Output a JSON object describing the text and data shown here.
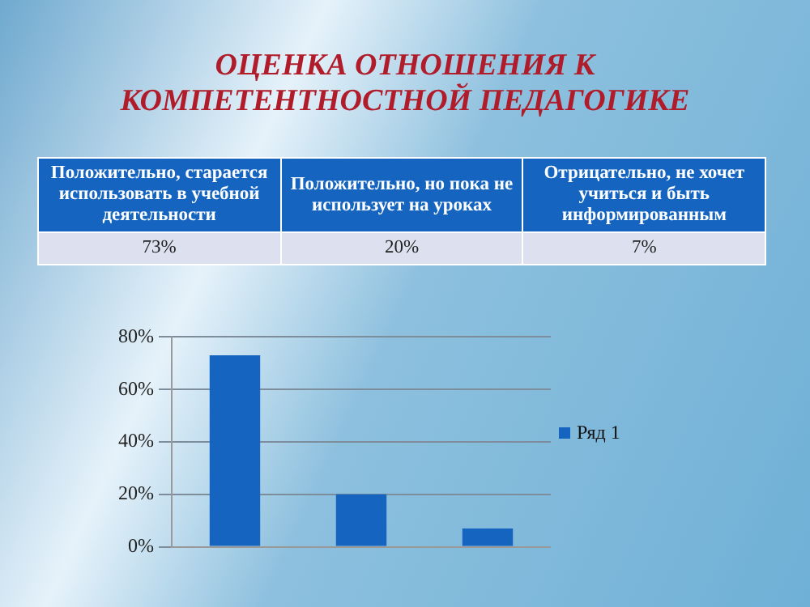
{
  "chart_data": {
    "type": "bar",
    "title": "ОЦЕНКА ОТНОШЕНИЯ К КОМПЕТЕНТНОСТНОЙ ПЕДАГОГИКЕ",
    "categories": [
      null,
      null,
      null
    ],
    "annotations": [
      "Положительно, старается использовать в учебной деятельности",
      "Положительно, но пока не использует на уроках",
      "Отрицательно, не хочет учиться и быть информированным",
      "73%",
      "20%",
      "7%"
    ],
    "series": [
      {
        "name": "Ряд 1",
        "color": "#1565c0",
        "values": [
          73,
          20,
          7
        ]
      }
    ],
    "ylim": [
      0,
      80
    ],
    "yticks": [
      {
        "value": 0,
        "label": "0%"
      },
      {
        "value": 20,
        "label": "20%"
      },
      {
        "value": 40,
        "label": "40%"
      },
      {
        "value": 60,
        "label": "60%"
      },
      {
        "value": 80,
        "label": "80%"
      }
    ],
    "grid": "y",
    "legend": "right",
    "tick_labels": "y"
  }
}
